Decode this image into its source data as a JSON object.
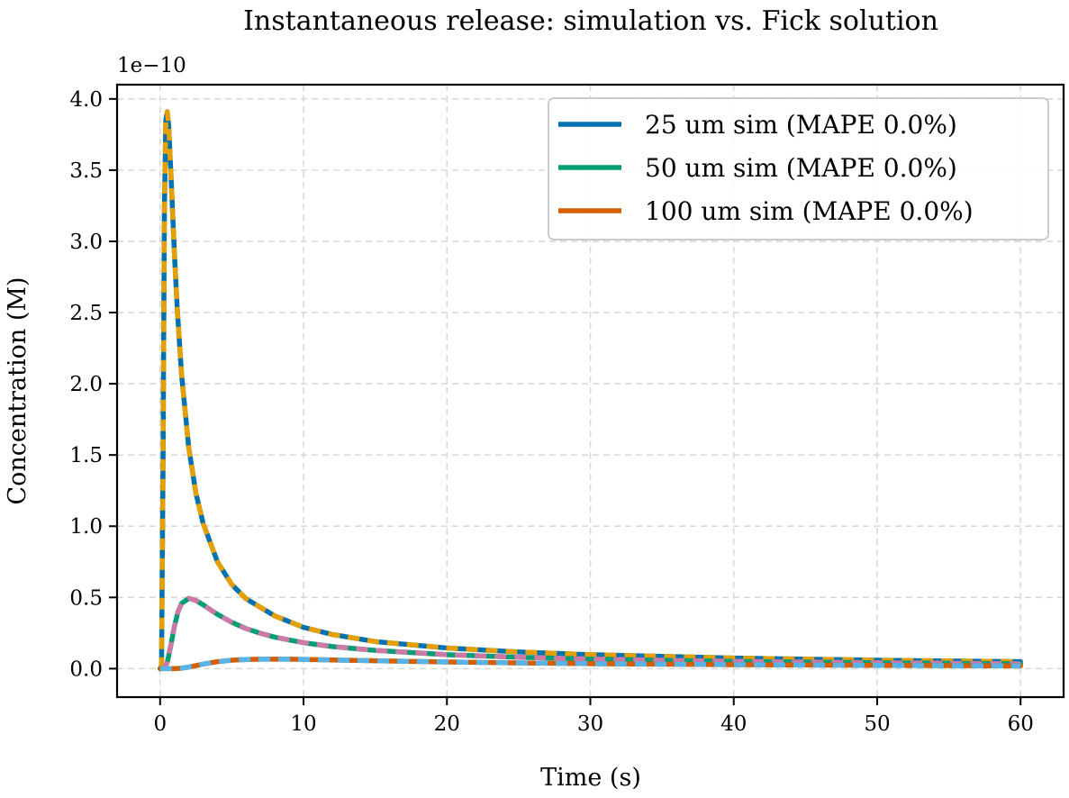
{
  "chart_data": {
    "type": "line",
    "title": "Instantaneous release: simulation vs. Fick solution",
    "xlabel": "Time (s)",
    "ylabel": "Concentration (M)",
    "y_scale_label": "1e−10",
    "y_scale_factor": 1e-10,
    "xlim": [
      -3,
      63
    ],
    "ylim": [
      -0.2,
      4.1
    ],
    "xticks": [
      0,
      10,
      20,
      30,
      40,
      50,
      60
    ],
    "xtick_labels": [
      "0",
      "10",
      "20",
      "30",
      "40",
      "50",
      "60"
    ],
    "yticks": [
      0.0,
      0.5,
      1.0,
      1.5,
      2.0,
      2.5,
      3.0,
      3.5,
      4.0
    ],
    "ytick_labels": [
      "0.0",
      "0.5",
      "1.0",
      "1.5",
      "2.0",
      "2.5",
      "3.0",
      "3.5",
      "4.0"
    ],
    "grid": true,
    "legend_position": "top-right",
    "series": [
      {
        "name": "25 um sim (MAPE 0.0%)",
        "color": "#0072B2",
        "style": "solid",
        "in_legend": true,
        "x": [
          0,
          0.1,
          0.2,
          0.3,
          0.4,
          0.5,
          0.6,
          0.8,
          1,
          1.2,
          1.5,
          2,
          2.5,
          3,
          4,
          5,
          6,
          8,
          10,
          12,
          15,
          20,
          25,
          30,
          40,
          50,
          60
        ],
        "y": [
          0,
          0.02,
          1.36,
          3.22,
          3.85,
          3.91,
          3.81,
          3.37,
          2.91,
          2.52,
          2.06,
          1.55,
          1.23,
          1.02,
          0.75,
          0.59,
          0.49,
          0.37,
          0.29,
          0.24,
          0.19,
          0.145,
          0.117,
          0.098,
          0.074,
          0.059,
          0.049
        ]
      },
      {
        "name": "",
        "color": "#E69F00",
        "style": "dashed",
        "in_legend": false,
        "x": [
          0,
          0.1,
          0.2,
          0.3,
          0.4,
          0.5,
          0.6,
          0.8,
          1,
          1.2,
          1.5,
          2,
          2.5,
          3,
          4,
          5,
          6,
          8,
          10,
          12,
          15,
          20,
          25,
          30,
          40,
          50,
          60
        ],
        "y": [
          0,
          0.02,
          1.36,
          3.22,
          3.85,
          3.91,
          3.81,
          3.37,
          2.91,
          2.52,
          2.06,
          1.55,
          1.23,
          1.02,
          0.75,
          0.59,
          0.49,
          0.37,
          0.29,
          0.24,
          0.19,
          0.145,
          0.117,
          0.098,
          0.074,
          0.059,
          0.049
        ]
      },
      {
        "name": "50 um sim (MAPE 0.0%)",
        "color": "#009E73",
        "style": "solid",
        "in_legend": true,
        "x": [
          0,
          0.25,
          0.5,
          0.75,
          1,
          1.25,
          1.5,
          2,
          2.5,
          3,
          3.5,
          4,
          5,
          6,
          7,
          8,
          10,
          12,
          15,
          20,
          25,
          30,
          40,
          50,
          60
        ],
        "y": [
          0,
          0.0005,
          0.043,
          0.165,
          0.298,
          0.4,
          0.458,
          0.493,
          0.478,
          0.448,
          0.414,
          0.381,
          0.325,
          0.281,
          0.248,
          0.221,
          0.182,
          0.155,
          0.128,
          0.098,
          0.08,
          0.067,
          0.051,
          0.041,
          0.034
        ]
      },
      {
        "name": "",
        "color": "#CC79A7",
        "style": "dashed",
        "in_legend": false,
        "x": [
          0,
          0.25,
          0.5,
          0.75,
          1,
          1.25,
          1.5,
          2,
          2.5,
          3,
          3.5,
          4,
          5,
          6,
          7,
          8,
          10,
          12,
          15,
          20,
          25,
          30,
          40,
          50,
          60
        ],
        "y": [
          0,
          0.0005,
          0.043,
          0.165,
          0.298,
          0.4,
          0.458,
          0.493,
          0.478,
          0.448,
          0.414,
          0.381,
          0.325,
          0.281,
          0.248,
          0.221,
          0.182,
          0.155,
          0.128,
          0.098,
          0.08,
          0.067,
          0.051,
          0.041,
          0.034
        ]
      },
      {
        "name": "100 um sim (MAPE 0.0%)",
        "color": "#D55E00",
        "style": "solid",
        "in_legend": true,
        "x": [
          0,
          0.5,
          1,
          1.5,
          2,
          3,
          4,
          5,
          6,
          7,
          8,
          9,
          10,
          12,
          15,
          20,
          25,
          30,
          40,
          50,
          60
        ],
        "y": [
          0,
          0,
          0.0002,
          0.003,
          0.011,
          0.032,
          0.049,
          0.059,
          0.064,
          0.066,
          0.0665,
          0.066,
          0.0645,
          0.061,
          0.055,
          0.047,
          0.04,
          0.035,
          0.028,
          0.023,
          0.019
        ]
      },
      {
        "name": "",
        "color": "#56B4E9",
        "style": "dashed",
        "in_legend": false,
        "x": [
          0,
          0.5,
          1,
          1.5,
          2,
          3,
          4,
          5,
          6,
          7,
          8,
          9,
          10,
          12,
          15,
          20,
          25,
          30,
          40,
          50,
          60
        ],
        "y": [
          0,
          0,
          0.0002,
          0.003,
          0.011,
          0.032,
          0.049,
          0.059,
          0.064,
          0.066,
          0.0665,
          0.066,
          0.0645,
          0.061,
          0.055,
          0.047,
          0.04,
          0.035,
          0.028,
          0.023,
          0.019
        ]
      }
    ]
  }
}
